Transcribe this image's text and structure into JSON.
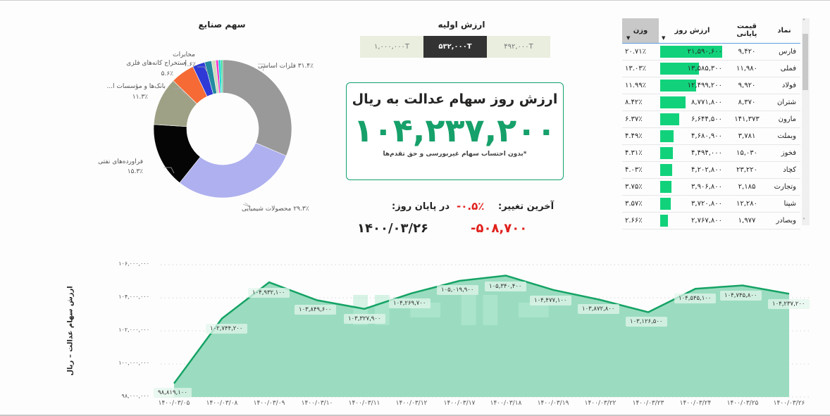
{
  "pie": {
    "title": "سهم صنایع",
    "slices": [
      {
        "label": "فلزات اساسی",
        "pct": 31.4,
        "pct_text": "۳۱.۴٪",
        "color": "#999999"
      },
      {
        "label": "محصولات شیمیایی",
        "pct": 29.3,
        "pct_text": "۲۹.۳٪",
        "color": "#aeb0ef"
      },
      {
        "label": "فراورده‌های نفتی",
        "pct": 15.3,
        "pct_text": "۱۵.۳٪",
        "color": "#050505"
      },
      {
        "label": "بانک‌ها و مؤسسات ا...",
        "pct": 11.3,
        "pct_text": "۱۱.۳٪",
        "color": "#9fa186"
      },
      {
        "label": "استخراج کانه‌های فلزی",
        "pct": 5.6,
        "pct_text": "۵.۶٪",
        "color": "#f56a35"
      },
      {
        "label": "",
        "pct": 2.9,
        "pct_text": "",
        "color": "#2f3ad6"
      },
      {
        "label": "مخابرات",
        "pct": 1.6,
        "pct_text": "۱.۶٪",
        "color": "#238aa0"
      },
      {
        "label": "",
        "pct": 1.0,
        "pct_text": "",
        "color": "#cfdcbc"
      },
      {
        "label": "",
        "pct": 0.6,
        "pct_text": "",
        "color": "#f03bcc"
      },
      {
        "label": "",
        "pct": 0.6,
        "pct_text": "",
        "color": "#15d7d4"
      },
      {
        "label": "",
        "pct": 0.4,
        "pct_text": "",
        "color": "#2cd98a"
      }
    ],
    "labels": {
      "metals": "۳۱.۴٪ فلزات اساسی",
      "chemicals": "۲۹.۳٪ محصولات شیمیایی",
      "oil": "فراورده‌های نفتی",
      "oil_pct": "۱۵.۳٪",
      "banks": "بانک‌ها و مؤسسات ا...",
      "banks_pct": "۱۱.۳٪",
      "mining": "استخراج کانه‌های فلزی",
      "mining_pct": "۵.۶٪",
      "telecom": "مخابرات",
      "telecom_pct": "۱.۶٪"
    }
  },
  "initial_value": {
    "title": "ارزش اولیه",
    "options": [
      "۱,۰۰۰,۰۰۰T",
      "۵۳۲,۰۰۰T",
      "۴۹۲,۰۰۰T"
    ],
    "selected_index": 1
  },
  "summary": {
    "title": "ارزش روز سهام عدالت به ریال",
    "value": "۱۰۴,۲۳۷,۲۰۰",
    "note": "*بدون احتساب سهام غیربورسی و حق تقدم‌ها",
    "last_change_label": "آخرین تغییر:",
    "last_change_pct": "-۰.۵٪",
    "last_change_value": "-۵۰۸,۷۰۰",
    "end_of_day_label": "در پایان روز:",
    "end_of_day_date": "۱۴۰۰/۰۳/۲۶"
  },
  "table": {
    "columns": [
      "نماد",
      "قیمت پایانی",
      "ارزش روز",
      "وزن"
    ],
    "sorted_column": "وزن",
    "rows": [
      {
        "symbol": "فارس",
        "price": "۹,۴۲۰",
        "value": "۲۱,۵۹۰,۶۰۰",
        "weight": "۲۰.۷۱٪",
        "bar": 20.71
      },
      {
        "symbol": "فملی",
        "price": "۱۱,۹۸۰",
        "value": "۱۳,۵۸۵,۳۰۰",
        "weight": "۱۳.۰۳٪",
        "bar": 13.03
      },
      {
        "symbol": "فولاد",
        "price": "۹,۹۲۰",
        "value": "۱۲,۴۹۹,۲۰۰",
        "weight": "۱۱.۹۹٪",
        "bar": 11.99
      },
      {
        "symbol": "شتران",
        "price": "۸,۳۷۰",
        "value": "۸,۷۷۱,۸۰۰",
        "weight": "۸.۴۲٪",
        "bar": 8.42
      },
      {
        "symbol": "مارون",
        "price": "۱۴۱,۳۷۳",
        "value": "۶,۶۴۴,۵۰۰",
        "weight": "۶.۳۷٪",
        "bar": 6.37
      },
      {
        "symbol": "وبملت",
        "price": "۳,۷۸۱",
        "value": "۴,۶۸۰,۹۰۰",
        "weight": "۴.۴۹٪",
        "bar": 4.49
      },
      {
        "symbol": "فخوز",
        "price": "۱۵,۰۳۰",
        "value": "۴,۴۹۴,۰۰۰",
        "weight": "۴.۳۱٪",
        "bar": 4.31
      },
      {
        "symbol": "کچاد",
        "price": "۲۳,۲۲۰",
        "value": "۴,۲۰۲,۸۰۰",
        "weight": "۴.۰۳٪",
        "bar": 4.03
      },
      {
        "symbol": "وتجارت",
        "price": "۲,۱۸۵",
        "value": "۳,۹۰۶,۸۰۰",
        "weight": "۳.۷۵٪",
        "bar": 3.75
      },
      {
        "symbol": "شپنا",
        "price": "۱۲,۲۸۰",
        "value": "۳,۷۲۰,۸۰۰",
        "weight": "۳.۵۷٪",
        "bar": 3.57
      },
      {
        "symbol": "وبصادر",
        "price": "۱,۹۷۷",
        "value": "۲,۷۶۷,۸۰۰",
        "weight": "۲.۶۶٪",
        "bar": 2.66
      }
    ]
  },
  "line_chart": {
    "ylabel": "ارزش سهام عدالت – ریال",
    "yticks": [
      "۱۰۶,۰۰۰,۰۰۰",
      "۱۰۴,۰۰۰,۰۰۰",
      "۱۰۲,۰۰۰,۰۰۰",
      "۱۰۰,۰۰۰,۰۰۰",
      "۹۸,۰۰۰,۰۰۰"
    ],
    "dates": [
      "۱۴۰۰/۰۳/۰۵",
      "۱۴۰۰/۰۳/۰۸",
      "۱۴۰۰/۰۳/۰۹",
      "۱۴۰۰/۰۳/۱۰",
      "۱۴۰۰/۰۳/۱۱",
      "۱۴۰۰/۰۳/۱۲",
      "۱۴۰۰/۰۳/۱۷",
      "۱۴۰۰/۰۳/۱۸",
      "۱۴۰۰/۰۳/۱۹",
      "۱۴۰۰/۰۳/۲۲",
      "۱۴۰۰/۰۳/۲۳",
      "۱۴۰۰/۰۳/۲۴",
      "۱۴۰۰/۰۳/۲۵",
      "۱۴۰۰/۰۳/۲۶"
    ],
    "value_labels": [
      "۹۸,۸۱۹,۱۰۰",
      "۱۰۲,۷۴۴,۲۰۰",
      "۱۰۴,۹۳۲,۱۰۰",
      "۱۰۳,۸۴۹,۶۰۰",
      "۱۰۳,۳۲۷,۹۰۰",
      "۱۰۴,۲۶۹,۷۰۰",
      "۱۰۵,۰۱۹,۹۰۰",
      "۱۰۵,۳۴۰,۴۰۰",
      "۱۰۴,۴۷۷,۱۰۰",
      "۱۰۳,۸۷۲,۸۰۰",
      "۱۰۳,۱۲۶,۵۰۰",
      "۱۰۴,۵۴۵,۱۰۰",
      "۱۰۴,۷۴۵,۸۰۰",
      "۱۰۴,۲۳۷,۲۰۰"
    ],
    "line_color": "#15a365",
    "fill_color": "#9bdcc0"
  },
  "chart_data": {
    "type": "area",
    "title": "",
    "xlabel": "",
    "ylabel": "ارزش سهام عدالت – ریال",
    "x": [
      "1400/03/05",
      "1400/03/08",
      "1400/03/09",
      "1400/03/10",
      "1400/03/11",
      "1400/03/12",
      "1400/03/17",
      "1400/03/18",
      "1400/03/19",
      "1400/03/22",
      "1400/03/23",
      "1400/03/24",
      "1400/03/25",
      "1400/03/26"
    ],
    "values": [
      98819100,
      102744200,
      104932100,
      103849600,
      103327900,
      104269700,
      105019900,
      105340400,
      104477100,
      103872800,
      103126500,
      104545100,
      104745800,
      104237200
    ],
    "ylim": [
      98000000,
      106000000
    ],
    "grid": true,
    "data_labels": true
  }
}
